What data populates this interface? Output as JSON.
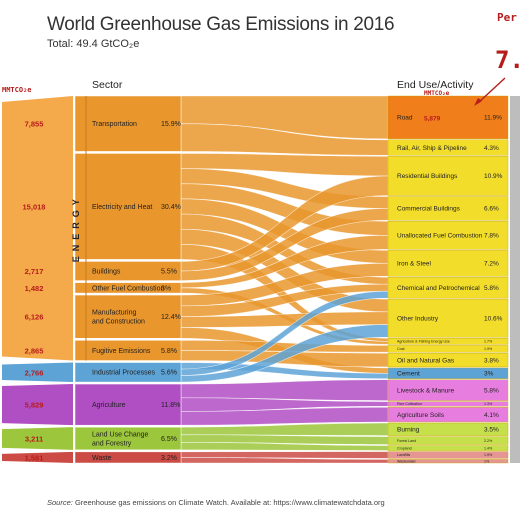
{
  "title": "World Greenhouse Gas Emissions in 2016",
  "subtitle": "Total: 49.4 GtCO₂e",
  "corner_label": "Per",
  "corner_value": "7.",
  "unit_label_left": "MMTCO₂e",
  "unit_label_right": "MMTCO₂e",
  "sector_header": "Sector",
  "enduse_header": "End Use/Activity",
  "energy_label": "ENERGY",
  "source_prefix": "Source:",
  "source_text": "Greenhouse gas emissions on Climate Watch. Available at: https://www.climatewatchdata.org",
  "colors": {
    "energy": "#e9962d",
    "energy_left": "#f4a94a",
    "industrial": "#5da3d6",
    "agriculture": "#b04ec4",
    "land": "#9cc63b",
    "waste": "#cc4b45",
    "end_energy": "#f3dd2b",
    "end_agri": "#e87de0",
    "end_land": "#c5e04a",
    "end_waste": "#e59594",
    "road": "#f07e1a",
    "mmt_red": "#b71c1c"
  },
  "chart_data": {
    "type": "sankey",
    "title": "World Greenhouse Gas Emissions in 2016",
    "total": "49.4 GtCO₂e",
    "sectors": [
      {
        "name": "Transportation",
        "share": "15.9%",
        "mmt": "7,855",
        "group": "energy"
      },
      {
        "name": "Electricity and Heat",
        "share": "30.4%",
        "mmt": "15,018",
        "group": "energy"
      },
      {
        "name": "Buildings",
        "share": "5.5%",
        "mmt": "2,717",
        "group": "energy"
      },
      {
        "name": "Other Fuel Combustion",
        "share": "3%",
        "mmt": "1,482",
        "group": "energy"
      },
      {
        "name": "Manufacturing\nand Construction",
        "share": "12.4%",
        "mmt": "6,126",
        "group": "energy"
      },
      {
        "name": "Fugitive Emissions",
        "share": "5.8%",
        "mmt": "2,865",
        "group": "energy"
      },
      {
        "name": "Industrial Processes",
        "share": "5.6%",
        "mmt": "2,766",
        "group": "industrial"
      },
      {
        "name": "Agriculture",
        "share": "11.8%",
        "mmt": "5,829",
        "group": "agriculture"
      },
      {
        "name": "Land Use Change\nand Forestry",
        "share": "6.5%",
        "mmt": "3,211",
        "group": "land"
      },
      {
        "name": "Waste",
        "share": "3.2%",
        "mmt": "1,581",
        "group": "waste"
      }
    ],
    "end_uses": [
      {
        "name": "Road",
        "share": "11.9%",
        "mmt": "5,879",
        "group": "road"
      },
      {
        "name": "Rail, Air, Ship & Pipeline",
        "share": "4.3%",
        "group": "energy"
      },
      {
        "name": "Residential Buildings",
        "share": "10.9%",
        "group": "energy"
      },
      {
        "name": "Commercial Buildings",
        "share": "6.6%",
        "group": "energy"
      },
      {
        "name": "Unallocated Fuel Combustion",
        "share": "7.8%",
        "group": "energy"
      },
      {
        "name": "Iron & Steel",
        "share": "7.2%",
        "group": "energy"
      },
      {
        "name": "Chemical and Petrochemical",
        "share": "5.8%",
        "group": "energy"
      },
      {
        "name": "Other Industry",
        "share": "10.6%",
        "group": "energy"
      },
      {
        "name": "Agriculture & Fishing Energy Use",
        "share": "1.7%",
        "group": "energy"
      },
      {
        "name": "Coal",
        "share": "1.9%",
        "group": "energy"
      },
      {
        "name": "Oil and Natural Gas",
        "share": "3.8%",
        "group": "energy"
      },
      {
        "name": "Cement",
        "share": "3%",
        "group": "industrial"
      },
      {
        "name": "Livestock & Manure",
        "share": "5.8%",
        "group": "agri"
      },
      {
        "name": "Rice Cultivation",
        "share": "1.3%",
        "group": "agri"
      },
      {
        "name": "Agriculture Soils",
        "share": "4.1%",
        "group": "agri"
      },
      {
        "name": "Burning",
        "share": "3.5%",
        "group": "land"
      },
      {
        "name": "Forest Land",
        "share": "2.2%",
        "group": "land"
      },
      {
        "name": "Cropland",
        "share": "1.4%",
        "group": "land"
      },
      {
        "name": "Landfills",
        "share": "1.9%",
        "group": "waste"
      },
      {
        "name": "Wastewater",
        "share": "1%",
        "group": "waste"
      }
    ]
  }
}
